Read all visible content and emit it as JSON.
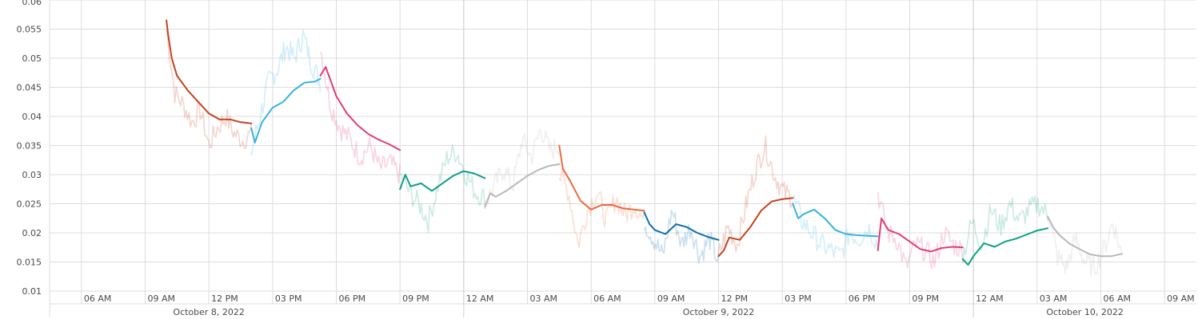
{
  "chart_data": {
    "type": "line",
    "title": "",
    "xlabel": "",
    "ylabel": "",
    "ylim": [
      0.01,
      0.06
    ],
    "xlim": [
      "2022-10-08T04:30",
      "2022-10-10T10:30"
    ],
    "grid": true,
    "y_ticks": [
      "0.01",
      "0.015",
      "0.02",
      "0.025",
      "0.03",
      "0.035",
      "0.04",
      "0.045",
      "0.05",
      "0.055",
      "0.06"
    ],
    "x_tick_labels": [
      "06 AM",
      "09 AM",
      "12 PM",
      "03 PM",
      "06 PM",
      "09 PM",
      "12 AM",
      "03 AM",
      "06 AM",
      "09 AM",
      "12 PM",
      "03 PM",
      "06 PM",
      "09 PM",
      "12 AM",
      "03 AM",
      "06 AM",
      "09 AM"
    ],
    "day_labels": [
      "October 8, 2022",
      "October 9, 2022",
      "October 10, 2022"
    ],
    "segments": [
      {
        "color": "#c8401e",
        "x": [
          "2022-10-08T10:00",
          "2022-10-08T10:05",
          "2022-10-08T10:15",
          "2022-10-08T10:30",
          "2022-10-08T11:00",
          "2022-10-08T11:30",
          "2022-10-08T12:00",
          "2022-10-08T12:30",
          "2022-10-08T13:00",
          "2022-10-08T13:30",
          "2022-10-08T14:00"
        ],
        "values": [
          0.0565,
          0.054,
          0.05,
          0.047,
          0.0445,
          0.0425,
          0.0405,
          0.0395,
          0.0395,
          0.039,
          0.0388
        ],
        "raw": [
          0.055,
          0.044,
          0.042,
          0.039,
          0.041,
          0.035,
          0.038,
          0.04,
          0.037,
          0.036,
          0.037
        ]
      },
      {
        "color": "#37b2e2",
        "x": [
          "2022-10-08T14:00",
          "2022-10-08T14:10",
          "2022-10-08T14:30",
          "2022-10-08T15:00",
          "2022-10-08T15:30",
          "2022-10-08T16:00",
          "2022-10-08T16:30",
          "2022-10-08T17:00",
          "2022-10-08T17:15"
        ],
        "values": [
          0.038,
          0.0355,
          0.039,
          0.0415,
          0.0425,
          0.0445,
          0.0458,
          0.046,
          0.0465
        ],
        "raw": [
          0.034,
          0.04,
          0.046,
          0.048,
          0.052,
          0.05,
          0.054,
          0.049,
          0.046
        ]
      },
      {
        "color": "#e23c78",
        "x": [
          "2022-10-08T17:15",
          "2022-10-08T17:30",
          "2022-10-08T18:00",
          "2022-10-08T18:30",
          "2022-10-08T19:00",
          "2022-10-08T19:30",
          "2022-10-08T20:00",
          "2022-10-08T20:30",
          "2022-10-08T21:00"
        ],
        "values": [
          0.047,
          0.0485,
          0.0435,
          0.0405,
          0.0385,
          0.037,
          0.036,
          0.0352,
          0.0342
        ],
        "raw": [
          0.052,
          0.042,
          0.038,
          0.036,
          0.033,
          0.035,
          0.031,
          0.032,
          0.03
        ]
      },
      {
        "color": "#109e8a",
        "x": [
          "2022-10-08T21:00",
          "2022-10-08T21:15",
          "2022-10-08T21:30",
          "2022-10-08T22:00",
          "2022-10-08T22:30",
          "2022-10-08T23:00",
          "2022-10-08T23:30",
          "2022-10-09T00:00",
          "2022-10-09T00:30",
          "2022-10-09T01:00"
        ],
        "values": [
          0.0275,
          0.03,
          0.028,
          0.0285,
          0.0272,
          0.0285,
          0.0298,
          0.0306,
          0.0302,
          0.0294
        ],
        "raw": [
          0.03,
          0.027,
          0.025,
          0.022,
          0.028,
          0.033,
          0.034,
          0.03,
          0.027,
          0.026
        ]
      },
      {
        "color": "#b8b8b8",
        "x": [
          "2022-10-09T01:00",
          "2022-10-09T01:15",
          "2022-10-09T01:30",
          "2022-10-09T02:00",
          "2022-10-09T02:30",
          "2022-10-09T03:00",
          "2022-10-09T03:30",
          "2022-10-09T04:00",
          "2022-10-09T04:30"
        ],
        "values": [
          0.0245,
          0.0268,
          0.0262,
          0.0272,
          0.0285,
          0.0298,
          0.0308,
          0.0315,
          0.0318
        ],
        "raw": [
          0.025,
          0.028,
          0.031,
          0.028,
          0.036,
          0.033,
          0.038,
          0.034,
          0.035
        ]
      },
      {
        "color": "#ee6a3c",
        "x": [
          "2022-10-09T04:30",
          "2022-10-09T04:40",
          "2022-10-09T05:00",
          "2022-10-09T05:30",
          "2022-10-09T06:00",
          "2022-10-09T06:30",
          "2022-10-09T07:00",
          "2022-10-09T07:30",
          "2022-10-09T08:00",
          "2022-10-09T08:30"
        ],
        "values": [
          0.035,
          0.031,
          0.029,
          0.0255,
          0.024,
          0.0248,
          0.0248,
          0.0242,
          0.024,
          0.0238
        ],
        "raw": [
          0.03,
          0.027,
          0.018,
          0.024,
          0.027,
          0.022,
          0.026,
          0.023,
          0.025,
          0.022
        ]
      },
      {
        "color": "#0f6ea8",
        "x": [
          "2022-10-09T08:30",
          "2022-10-09T08:45",
          "2022-10-09T09:00",
          "2022-10-09T09:30",
          "2022-10-09T10:00",
          "2022-10-09T10:30",
          "2022-10-09T11:00",
          "2022-10-09T11:30",
          "2022-10-09T12:00"
        ],
        "values": [
          0.0235,
          0.0215,
          0.0205,
          0.0198,
          0.0215,
          0.021,
          0.02,
          0.0193,
          0.0188
        ],
        "raw": [
          0.022,
          0.019,
          0.016,
          0.024,
          0.018,
          0.021,
          0.016,
          0.019,
          0.015
        ]
      },
      {
        "color": "#c8401e",
        "x": [
          "2022-10-09T12:00",
          "2022-10-09T12:15",
          "2022-10-09T12:30",
          "2022-10-09T13:00",
          "2022-10-09T13:30",
          "2022-10-09T14:00",
          "2022-10-09T14:30",
          "2022-10-09T15:00",
          "2022-10-09T15:30"
        ],
        "values": [
          0.016,
          0.017,
          0.0192,
          0.0188,
          0.021,
          0.0238,
          0.0254,
          0.0258,
          0.026
        ],
        "raw": [
          0.016,
          0.021,
          0.018,
          0.025,
          0.031,
          0.035,
          0.03,
          0.027,
          0.026
        ]
      },
      {
        "color": "#37b2e2",
        "x": [
          "2022-10-09T15:30",
          "2022-10-09T15:45",
          "2022-10-09T16:00",
          "2022-10-09T16:30",
          "2022-10-09T17:00",
          "2022-10-09T17:30",
          "2022-10-09T18:00",
          "2022-10-09T18:30",
          "2022-10-09T19:00",
          "2022-10-09T19:30"
        ],
        "values": [
          0.025,
          0.0225,
          0.0232,
          0.024,
          0.0225,
          0.0205,
          0.0198,
          0.0196,
          0.0195,
          0.0194
        ],
        "raw": [
          0.026,
          0.022,
          0.02,
          0.018,
          0.017,
          0.016,
          0.02,
          0.019,
          0.021,
          0.018
        ]
      },
      {
        "color": "#e23c78",
        "x": [
          "2022-10-09T19:30",
          "2022-10-09T19:40",
          "2022-10-09T20:00",
          "2022-10-09T20:30",
          "2022-10-09T21:00",
          "2022-10-09T21:30",
          "2022-10-09T22:00",
          "2022-10-09T22:30",
          "2022-10-09T23:00",
          "2022-10-09T23:30"
        ],
        "values": [
          0.017,
          0.0225,
          0.0205,
          0.0198,
          0.0185,
          0.0172,
          0.0168,
          0.0174,
          0.0176,
          0.0175
        ],
        "raw": [
          0.027,
          0.02,
          0.019,
          0.014,
          0.018,
          0.017,
          0.015,
          0.02,
          0.018,
          0.017
        ]
      },
      {
        "color": "#109e8a",
        "x": [
          "2022-10-09T23:30",
          "2022-10-09T23:45",
          "2022-10-10T00:00",
          "2022-10-10T00:30",
          "2022-10-10T01:00",
          "2022-10-10T01:30",
          "2022-10-10T02:00",
          "2022-10-10T02:30",
          "2022-10-10T03:00",
          "2022-10-10T03:30"
        ],
        "values": [
          0.0155,
          0.0145,
          0.016,
          0.0182,
          0.0176,
          0.0185,
          0.019,
          0.0197,
          0.0204,
          0.0208
        ],
        "raw": [
          0.016,
          0.022,
          0.018,
          0.024,
          0.021,
          0.025,
          0.022,
          0.024,
          0.025,
          0.023
        ]
      },
      {
        "color": "#b8b8b8",
        "x": [
          "2022-10-10T03:30",
          "2022-10-10T03:45",
          "2022-10-10T04:00",
          "2022-10-10T04:30",
          "2022-10-10T05:00",
          "2022-10-10T05:30",
          "2022-10-10T06:00",
          "2022-10-10T06:30",
          "2022-10-10T07:00"
        ],
        "values": [
          0.0228,
          0.021,
          0.0198,
          0.0182,
          0.0172,
          0.0163,
          0.016,
          0.016,
          0.0164
        ],
        "raw": [
          0.024,
          0.016,
          0.014,
          0.019,
          0.015,
          0.014,
          0.017,
          0.022,
          0.016
        ]
      }
    ]
  }
}
